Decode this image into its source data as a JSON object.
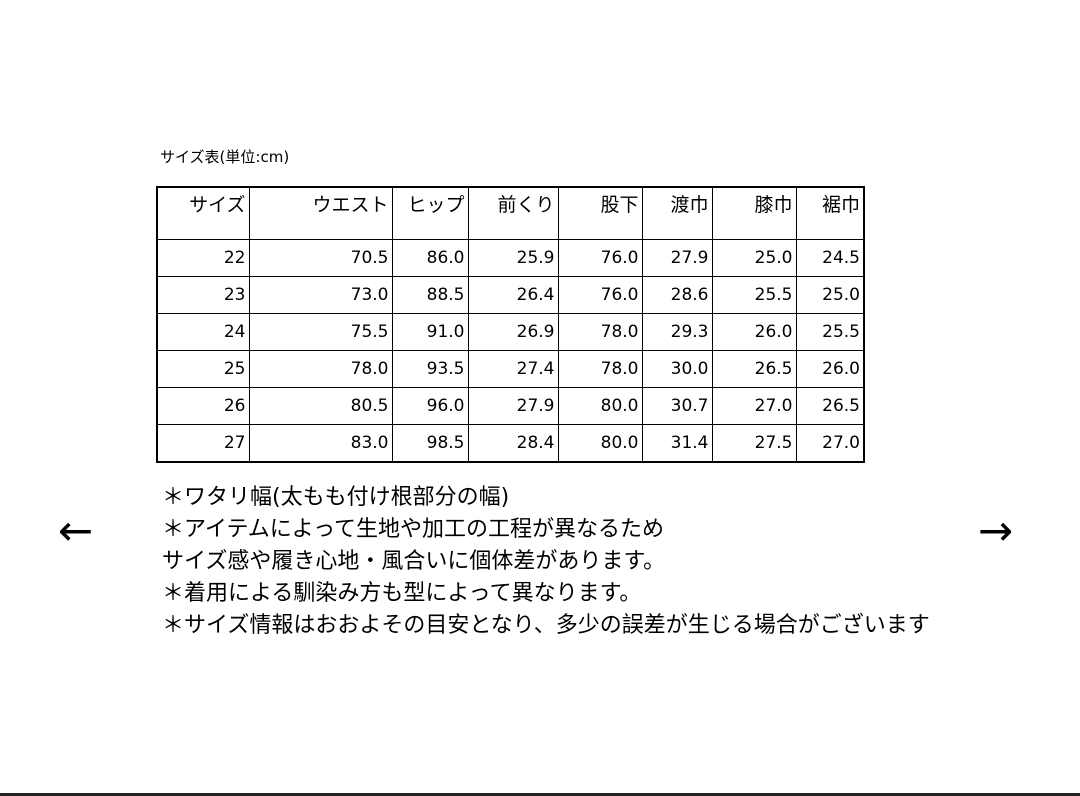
{
  "caption": "サイズ表(単位:cm)",
  "table": {
    "headers": [
      "サイズ",
      "ウエスト",
      "ヒップ",
      "前くり",
      "股下",
      "渡巾",
      "膝巾",
      "裾巾"
    ],
    "rows": [
      [
        "22",
        "70.5",
        "86.0",
        "25.9",
        "76.0",
        "27.9",
        "25.0",
        "24.5"
      ],
      [
        "23",
        "73.0",
        "88.5",
        "26.4",
        "76.0",
        "28.6",
        "25.5",
        "25.0"
      ],
      [
        "24",
        "75.5",
        "91.0",
        "26.9",
        "78.0",
        "29.3",
        "26.0",
        "25.5"
      ],
      [
        "25",
        "78.0",
        "93.5",
        "27.4",
        "78.0",
        "30.0",
        "26.5",
        "26.0"
      ],
      [
        "26",
        "80.5",
        "96.0",
        "27.9",
        "80.0",
        "30.7",
        "27.0",
        "26.5"
      ],
      [
        "27",
        "83.0",
        "98.5",
        "28.4",
        "80.0",
        "31.4",
        "27.5",
        "27.0"
      ]
    ]
  },
  "notes": [
    "＊ワタリ幅(太もも付け根部分の幅)",
    "＊アイテムによって生地や加工の工程が異なるため",
    "サイズ感や履き心地・風合いに個体差があります。",
    "＊着用による馴染み方も型によって異なります。",
    "＊サイズ情報はおおよその目安となり、多少の誤差が生じる場合がございます"
  ],
  "nav": {
    "prev_icon": "arrow-left-icon",
    "next_icon": "arrow-right-icon",
    "prev": "←",
    "next": "→"
  }
}
